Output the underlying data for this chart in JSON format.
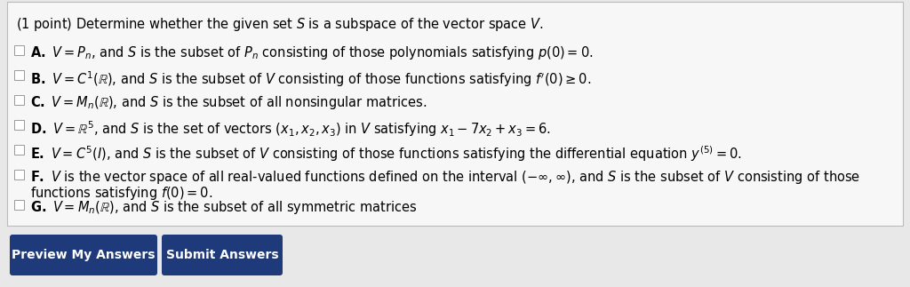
{
  "bg_color": "#e8e8e8",
  "box_bg": "#f5f5f5",
  "box_edge": "#cccccc",
  "title": "(1 point) Determine whether the given set $S$ is a subspace of the vector space $V$.",
  "options_line1": [
    "$\\mathbf{A.}$ $V = P_n$, and $S$ is the subset of $P_n$ consisting of those polynomials satisfying $p(0) = 0$.",
    "$\\mathbf{B.}$ $V = C^1(\\mathbb{R})$, and $S$ is the subset of $V$ consisting of those functions satisfying $f'(0) \\geq 0$.",
    "$\\mathbf{C.}$ $V = M_n(\\mathbb{R})$, and $S$ is the subset of all nonsingular matrices.",
    "$\\mathbf{D.}$ $V = \\mathbb{R}^5$, and $S$ is the set of vectors $(x_1, x_2, x_3)$ in $V$ satisfying $x_1 - 7x_2 + x_3 = 6$.",
    "$\\mathbf{E.}$ $V = C^5(I)$, and $S$ is the subset of $V$ consisting of those functions satisfying the differential equation $y^{(5)} = 0$.",
    "$\\mathbf{F.}$ $V$ is the vector space of all real-valued functions defined on the interval $(-\\infty, \\infty)$, and $S$ is the subset of $V$ consisting of those",
    "$\\mathbf{G.}$ $V = M_n(\\mathbb{R})$, and $S$ is the subset of all symmetric matrices"
  ],
  "option_F_line2": "functions satisfying $f(0) = 0$.",
  "button_color": "#1e3a7a",
  "button_text_color": "#ffffff",
  "button1_label": "Preview My Answers",
  "button2_label": "Submit Answers",
  "text_color": "#000000",
  "fontsize": 10.5,
  "title_fontsize": 10.5,
  "btn_fontsize": 10.0
}
